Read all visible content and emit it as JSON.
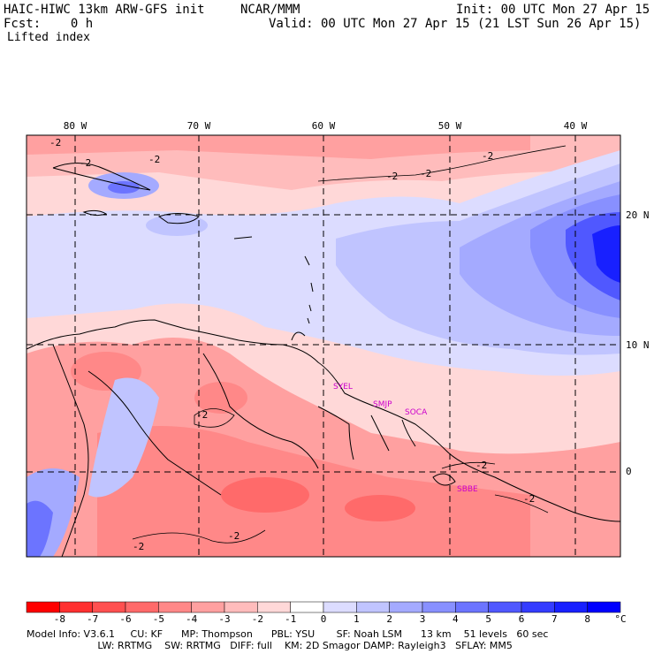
{
  "header": {
    "model": "HAIC-HIWC 13km ARW-GFS init",
    "org": "NCAR/MMM",
    "init": "Init: 00 UTC Mon 27 Apr 15",
    "fcst": "Fcst:    0 h",
    "valid": "Valid: 00 UTC Mon 27 Apr 15 (21 LST Sun 26 Apr 15)",
    "field": "Lifted index"
  },
  "map": {
    "lon_labels": [
      "80 W",
      "70 W",
      "60 W",
      "50 W",
      "40 W"
    ],
    "lat_labels": [
      "20 N",
      "10 N",
      "0"
    ],
    "stations": [
      "SYEL",
      "SMJP",
      "SOCA",
      "SBBE"
    ],
    "contour_labels": [
      "-2",
      "-2",
      "-2",
      "-2",
      "-2",
      "-2",
      "-2",
      "-2",
      "-2",
      "-2",
      "-2"
    ]
  },
  "colorbar": {
    "labels": [
      "-8",
      "-7",
      "-6",
      "-5",
      "-4",
      "-3",
      "-2",
      "-1",
      "0",
      "1",
      "2",
      "3",
      "4",
      "5",
      "6",
      "7",
      "8"
    ],
    "unit": "°C",
    "colors": [
      "#ff0000",
      "#ff3030",
      "#ff5050",
      "#ff6a6a",
      "#ff8888",
      "#ffa0a0",
      "#ffbcbc",
      "#ffd8d8",
      "#ffffff",
      "#dcdcff",
      "#c0c4ff",
      "#a4aaff",
      "#8890ff",
      "#6c74ff",
      "#5058ff",
      "#343cff",
      "#1820ff",
      "#0000ff"
    ]
  },
  "footer": {
    "line1": "Model Info: V3.6.1     CU: KF      MP: Thompson      PBL: YSU       SF: Noah LSM      13 km    51 levels   60 sec",
    "line2": "                       LW: RRTMG    SW: RRTMG   DIFF: full    KM: 2D Smagor DAMP: Rayleigh3   SFLAY: MM5"
  }
}
